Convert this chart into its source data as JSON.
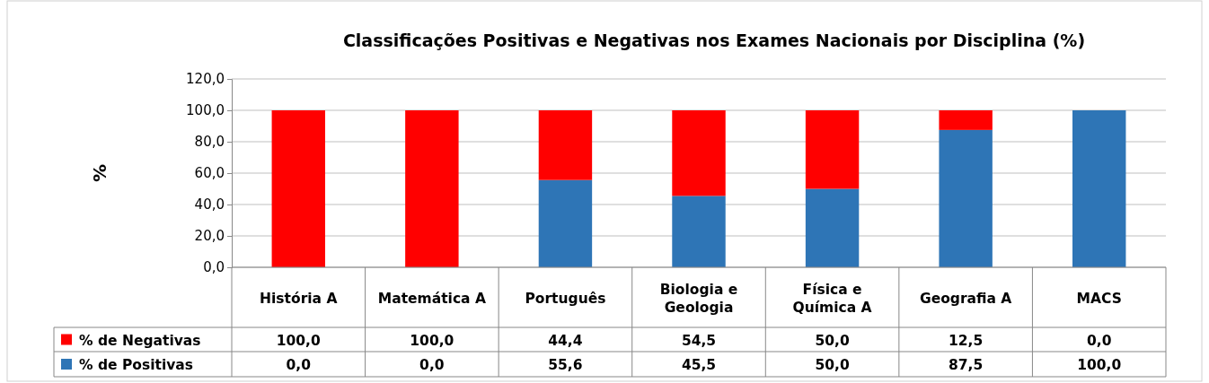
{
  "chart_data": {
    "type": "bar",
    "stacked": true,
    "title": "Classificações Positivas e Negativas nos Exames Nacionais por Disciplina (%)",
    "ylabel": "%",
    "categories": [
      "História A",
      "Matemática A",
      "Português",
      "Biologia e Geologia",
      "Física e Química A",
      "Geografia A",
      "MACS"
    ],
    "series": [
      {
        "name": "% de Positivas",
        "color": "#2e75b6",
        "values": [
          0.0,
          0.0,
          55.6,
          45.5,
          50.0,
          87.5,
          100.0
        ],
        "value_labels": [
          "0,0",
          "0,0",
          "55,6",
          "45,5",
          "50,0",
          "87,5",
          "100,0"
        ]
      },
      {
        "name": "% de Negativas",
        "color": "#ff0000",
        "values": [
          100.0,
          100.0,
          44.4,
          54.5,
          50.0,
          12.5,
          0.0
        ],
        "value_labels": [
          "100,0",
          "100,0",
          "44,4",
          "54,5",
          "50,0",
          "12,5",
          "0,0"
        ]
      }
    ],
    "ylim": [
      0,
      120
    ],
    "yticks": [
      {
        "value": 0,
        "label": "0,0"
      },
      {
        "value": 20,
        "label": "20,0"
      },
      {
        "value": 40,
        "label": "40,0"
      },
      {
        "value": 60,
        "label": "60,0"
      },
      {
        "value": 80,
        "label": "80,0"
      },
      {
        "value": 100,
        "label": "100,0"
      },
      {
        "value": 120,
        "label": "120,0"
      }
    ],
    "grid": "y",
    "legend": "bottom"
  }
}
